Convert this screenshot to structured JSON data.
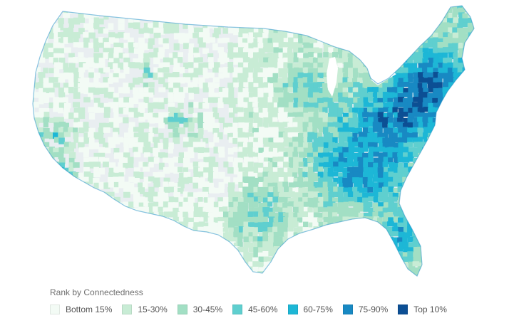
{
  "legend": {
    "title": "Rank by Connectedness",
    "items": [
      {
        "label": "Bottom 15%",
        "color": "#f3fbf5"
      },
      {
        "label": "15-30%",
        "color": "#c8ecd5"
      },
      {
        "label": "30-45%",
        "color": "#a2dfc4"
      },
      {
        "label": "45-60%",
        "color": "#5fcfcf"
      },
      {
        "label": "60-75%",
        "color": "#1db7d6"
      },
      {
        "label": "75-90%",
        "color": "#1889c3"
      },
      {
        "label": "Top 10%",
        "color": "#0c4f94"
      }
    ]
  },
  "map": {
    "land_color": "#e9eef1",
    "coast_color": "#1a8cc8"
  }
}
